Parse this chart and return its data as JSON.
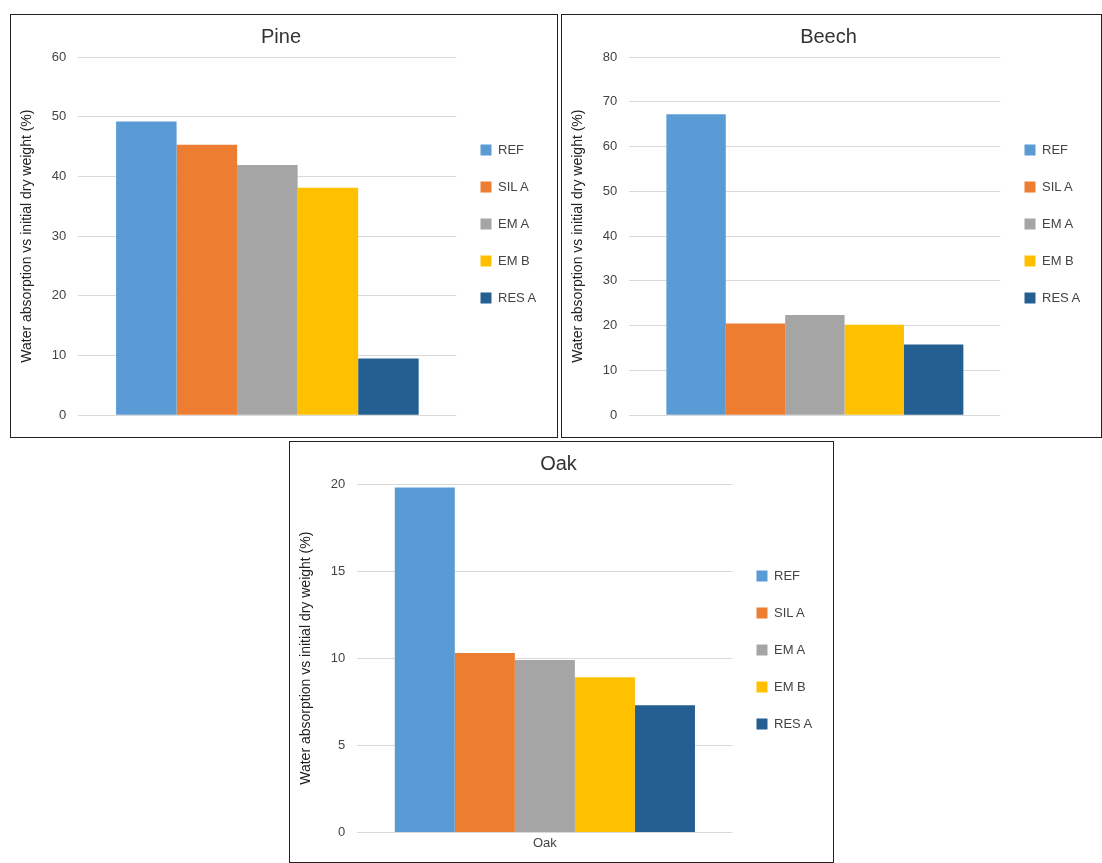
{
  "chart_data": [
    {
      "type": "bar",
      "title": "Pine",
      "ylabel": "Water absorption vs initial dry weight (%)",
      "categories": [
        null
      ],
      "series": [
        {
          "name": "REF",
          "color": "#5b9bd5",
          "values": [
            49.2
          ]
        },
        {
          "name": "SIL A",
          "color": "#ed7d31",
          "values": [
            45.3
          ]
        },
        {
          "name": "EM A",
          "color": "#a5a5a5",
          "values": [
            41.9
          ]
        },
        {
          "name": "EM B",
          "color": "#ffc000",
          "values": [
            38.1
          ]
        },
        {
          "name": "RES A",
          "color": "#255e91",
          "values": [
            9.5
          ]
        }
      ],
      "ylim": [
        0,
        60
      ],
      "yticks": [
        0,
        10,
        20,
        30,
        40,
        50,
        60
      ],
      "grid": "y",
      "legend": "right",
      "tick_labels": "y"
    },
    {
      "type": "bar",
      "title": "Beech",
      "ylabel": "Water absorption vs initial dry weight (%)",
      "categories": [
        null
      ],
      "series": [
        {
          "name": "REF",
          "color": "#5b9bd5",
          "values": [
            67.2
          ]
        },
        {
          "name": "SIL A",
          "color": "#ed7d31",
          "values": [
            20.5
          ]
        },
        {
          "name": "EM A",
          "color": "#a5a5a5",
          "values": [
            22.4
          ]
        },
        {
          "name": "EM B",
          "color": "#ffc000",
          "values": [
            20.2
          ]
        },
        {
          "name": "RES A",
          "color": "#255e91",
          "values": [
            15.8
          ]
        }
      ],
      "ylim": [
        0,
        80
      ],
      "yticks": [
        0,
        10,
        20,
        30,
        40,
        50,
        60,
        70,
        80
      ],
      "grid": "y",
      "legend": "right",
      "tick_labels": "y"
    },
    {
      "type": "bar",
      "title": "Oak",
      "ylabel": "Water absorption vs initial dry weight (%)",
      "categories": [
        "Oak"
      ],
      "series": [
        {
          "name": "REF",
          "color": "#5b9bd5",
          "values": [
            19.8
          ]
        },
        {
          "name": "SIL A",
          "color": "#ed7d31",
          "values": [
            10.3
          ]
        },
        {
          "name": "EM A",
          "color": "#a5a5a5",
          "values": [
            9.9
          ]
        },
        {
          "name": "EM B",
          "color": "#ffc000",
          "values": [
            8.9
          ]
        },
        {
          "name": "RES A",
          "color": "#255e91",
          "values": [
            7.3
          ]
        }
      ],
      "ylim": [
        0,
        20
      ],
      "yticks": [
        0,
        5,
        10,
        15,
        20
      ],
      "grid": "y",
      "legend": "right"
    }
  ]
}
